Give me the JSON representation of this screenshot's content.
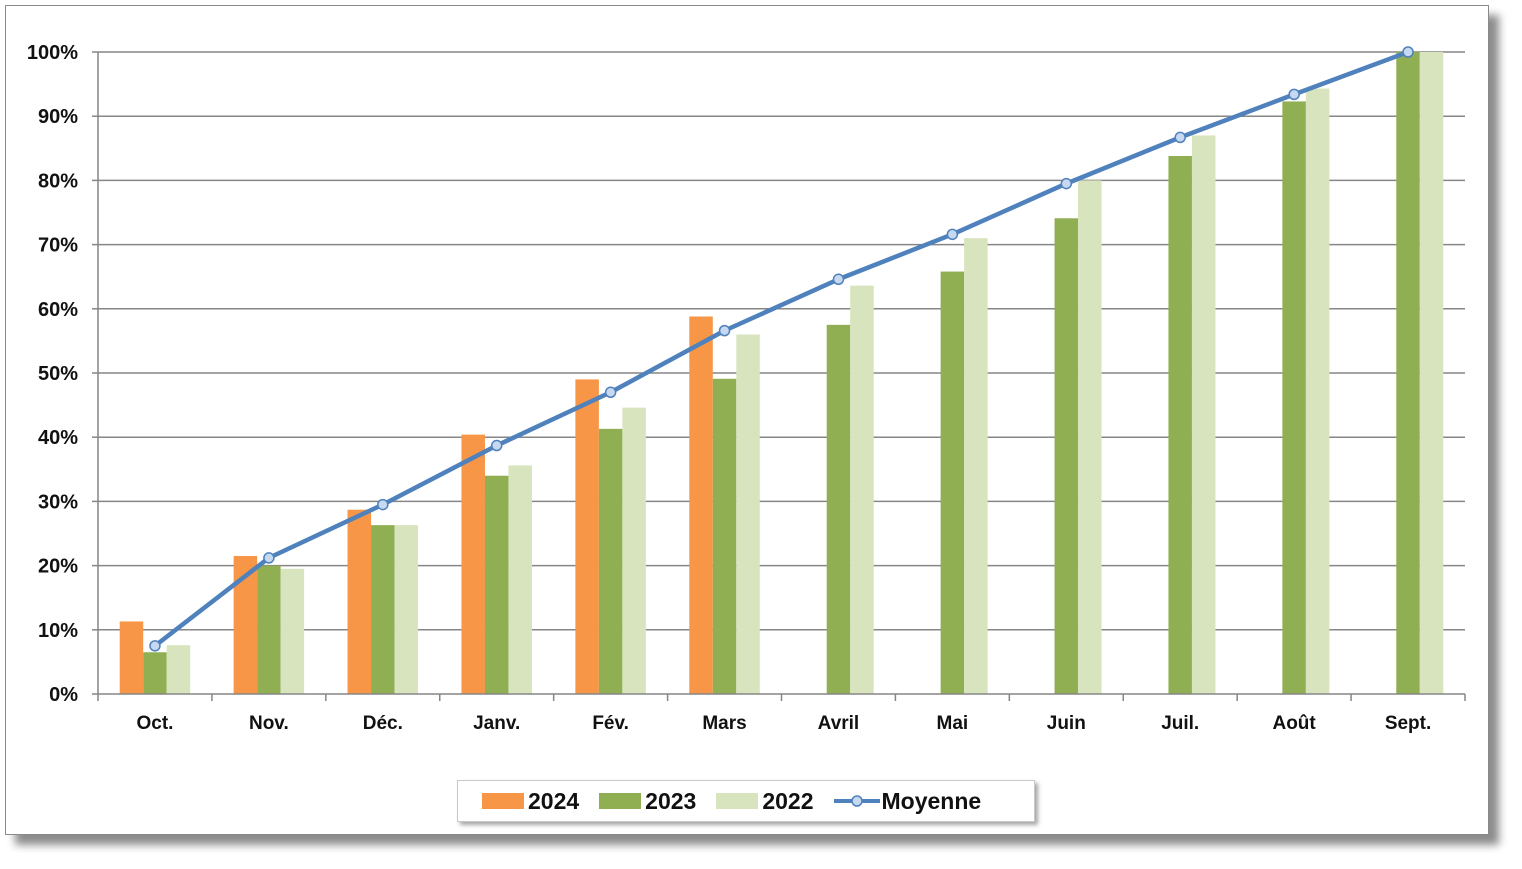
{
  "chart_data": {
    "type": "bar",
    "categories": [
      "Oct.",
      "Nov.",
      "Déc.",
      "Janv.",
      "Fév.",
      "Mars",
      "Avril",
      "Mai",
      "Juin",
      "Juil.",
      "Août",
      "Sept."
    ],
    "series": [
      {
        "name": "2024",
        "kind": "bar",
        "color": "#F79646",
        "values": [
          11.3,
          21.5,
          28.7,
          40.4,
          49.0,
          58.8,
          null,
          null,
          null,
          null,
          null,
          null
        ]
      },
      {
        "name": "2023",
        "kind": "bar",
        "color": "#8FAF52",
        "values": [
          6.5,
          20.0,
          26.3,
          34.0,
          41.3,
          49.1,
          57.5,
          65.8,
          74.1,
          83.8,
          92.3,
          100.0
        ]
      },
      {
        "name": "2022",
        "kind": "bar",
        "color": "#D7E4BD",
        "values": [
          7.6,
          19.5,
          26.3,
          35.6,
          44.6,
          56.0,
          63.6,
          71.0,
          80.0,
          87.0,
          94.3,
          100.0
        ]
      },
      {
        "name": "Moyenne",
        "kind": "line",
        "color": "#4F81BD",
        "values": [
          7.5,
          21.2,
          29.5,
          38.7,
          47.0,
          56.6,
          64.6,
          71.6,
          79.5,
          86.7,
          93.4,
          100.0
        ]
      }
    ],
    "y_ticks": [
      "0%",
      "10%",
      "20%",
      "30%",
      "40%",
      "50%",
      "60%",
      "70%",
      "80%",
      "90%",
      "100%"
    ],
    "ylim": [
      0,
      100
    ],
    "grid": true,
    "legend_position": "bottom",
    "title": "",
    "xlabel": "",
    "ylabel": ""
  },
  "legend": {
    "items": [
      {
        "label": "2024",
        "color": "#F79646"
      },
      {
        "label": "2023",
        "color": "#8FAF52"
      },
      {
        "label": "2022",
        "color": "#D7E4BD"
      },
      {
        "label": "Moyenne",
        "color": "#4F81BD"
      }
    ]
  }
}
